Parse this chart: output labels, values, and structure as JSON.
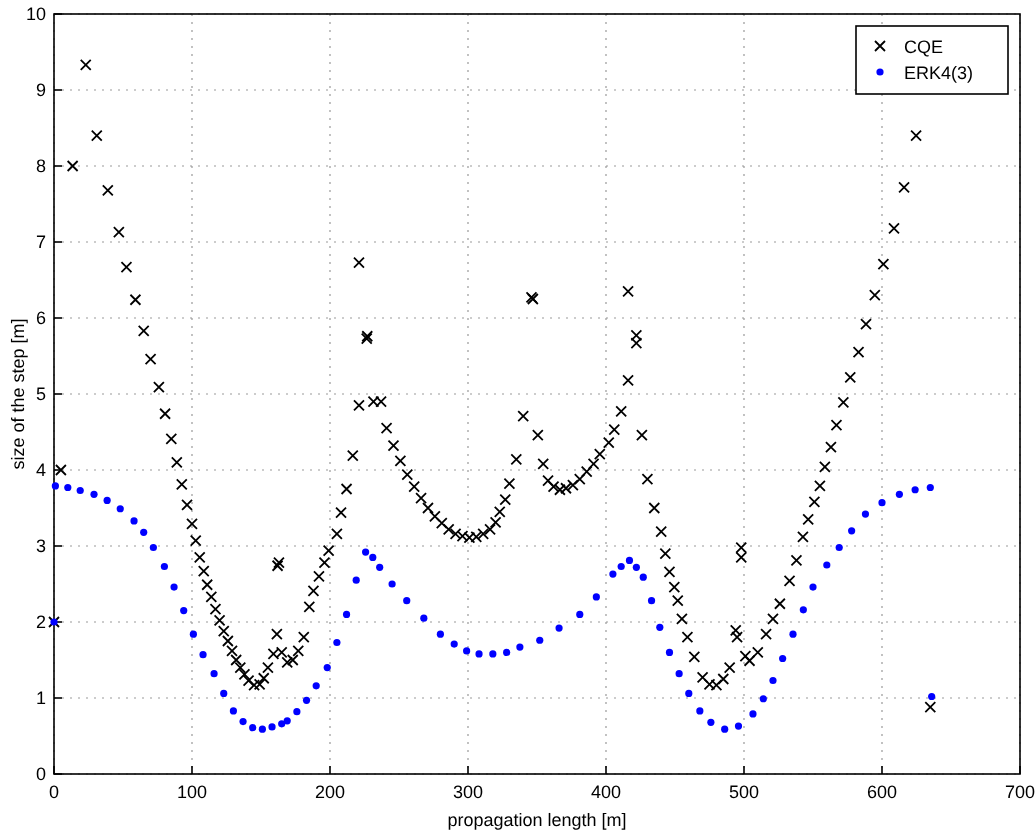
{
  "chart_data": {
    "type": "scatter",
    "xlabel": "propagation length [m]",
    "ylabel": "size of the step [m]",
    "xlim": [
      0,
      700
    ],
    "ylim": [
      0,
      10
    ],
    "xticks": [
      0,
      100,
      200,
      300,
      400,
      500,
      600,
      700
    ],
    "yticks": [
      0,
      1,
      2,
      3,
      4,
      5,
      6,
      7,
      8,
      9,
      10
    ],
    "grid": true,
    "legend": "top right",
    "series": [
      {
        "name": "CQE",
        "color": "#000000",
        "marker": "cross",
        "x": [
          0,
          5,
          13.5,
          23,
          31,
          39,
          47,
          52.5,
          59,
          65,
          70,
          76,
          80.5,
          85,
          89,
          92.6,
          96.4,
          100,
          102.7,
          105.6,
          108.5,
          111,
          114,
          117,
          120,
          123,
          126,
          129,
          132,
          135,
          138,
          141,
          145,
          149,
          152,
          155,
          159,
          161.5,
          162,
          163,
          165,
          169,
          173,
          177,
          181,
          185,
          188,
          192,
          196,
          199,
          205,
          208,
          212,
          216.5,
          221,
          221,
          226.6,
          227,
          231.5,
          237,
          241,
          246,
          251,
          256,
          261,
          266,
          271,
          276,
          281,
          286,
          291,
          296,
          301,
          306,
          311,
          316,
          320,
          323,
          327,
          330,
          335,
          340,
          346,
          347,
          350.6,
          354.5,
          358,
          362,
          366.6,
          371,
          376,
          381,
          386,
          391,
          395.5,
          402,
          406,
          411,
          416,
          416,
          422,
          422,
          426,
          430,
          435,
          440,
          443,
          446,
          449.5,
          452,
          455,
          459,
          464,
          470,
          475,
          480,
          485,
          489.6,
          494,
          495,
          498,
          498,
          501,
          504,
          510,
          516,
          521,
          526,
          533,
          538,
          542.7,
          546.5,
          551,
          555,
          558.6,
          563,
          567,
          572,
          577,
          583,
          588.4,
          594.8,
          601,
          608.7,
          616,
          624.7,
          635
        ],
        "values": [
          2,
          4,
          8.0,
          9.33,
          8.4,
          7.68,
          7.13,
          6.67,
          6.24,
          5.83,
          5.46,
          5.09,
          4.74,
          4.41,
          4.1,
          3.81,
          3.54,
          3.29,
          3.07,
          2.85,
          2.67,
          2.49,
          2.33,
          2.17,
          2.02,
          1.88,
          1.75,
          1.62,
          1.5,
          1.4,
          1.31,
          1.23,
          1.17,
          1.18,
          1.26,
          1.4,
          1.58,
          1.84,
          2.74,
          2.78,
          1.6,
          1.47,
          1.5,
          1.62,
          1.8,
          2.2,
          2.41,
          2.6,
          2.78,
          2.94,
          3.16,
          3.44,
          3.75,
          4.19,
          4.85,
          6.73,
          5.73,
          5.76,
          4.9,
          4.9,
          4.55,
          4.32,
          4.12,
          3.94,
          3.78,
          3.63,
          3.5,
          3.39,
          3.3,
          3.22,
          3.16,
          3.13,
          3.11,
          3.12,
          3.16,
          3.22,
          3.31,
          3.45,
          3.61,
          3.82,
          4.14,
          4.71,
          6.27,
          6.25,
          4.46,
          4.08,
          3.86,
          3.78,
          3.74,
          3.76,
          3.8,
          3.88,
          3.98,
          4.08,
          4.21,
          4.36,
          4.53,
          4.77,
          5.18,
          6.35,
          5.77,
          5.67,
          4.46,
          3.88,
          3.5,
          3.19,
          2.9,
          2.66,
          2.46,
          2.28,
          2.04,
          1.8,
          1.54,
          1.27,
          1.18,
          1.17,
          1.25,
          1.4,
          1.89,
          1.8,
          2.98,
          2.85,
          1.55,
          1.49,
          1.6,
          1.84,
          2.04,
          2.24,
          2.54,
          2.81,
          3.12,
          3.35,
          3.58,
          3.79,
          4.04,
          4.3,
          4.59,
          4.89,
          5.22,
          5.55,
          5.92,
          6.3,
          6.71,
          7.18,
          7.72,
          8.4,
          0.88
        ]
      },
      {
        "name": "ERK4(3)",
        "color": "#0000ff",
        "marker": "circle",
        "x": [
          0,
          1,
          10,
          19,
          29,
          38.5,
          48,
          58,
          65,
          72,
          80,
          87,
          94,
          101,
          108,
          116,
          123,
          130,
          137,
          144,
          151,
          158,
          165,
          169,
          176,
          183,
          190,
          198,
          205,
          212,
          219,
          225.8,
          231,
          236,
          245,
          255.6,
          268,
          280,
          290,
          299,
          308,
          318,
          328,
          337.6,
          352,
          366,
          381,
          393,
          405,
          411,
          417,
          422,
          427,
          433,
          439,
          446,
          453,
          460,
          468,
          476,
          486,
          496,
          506.5,
          514,
          521,
          528,
          535.5,
          543,
          550,
          560,
          569,
          578,
          588,
          600,
          612.6,
          624,
          635,
          636
        ],
        "values": [
          2,
          3.79,
          3.77,
          3.73,
          3.68,
          3.6,
          3.49,
          3.33,
          3.18,
          2.98,
          2.73,
          2.46,
          2.15,
          1.84,
          1.57,
          1.32,
          1.06,
          0.83,
          0.69,
          0.61,
          0.59,
          0.62,
          0.66,
          0.7,
          0.82,
          0.97,
          1.16,
          1.4,
          1.73,
          2.1,
          2.55,
          2.92,
          2.85,
          2.72,
          2.5,
          2.28,
          2.05,
          1.84,
          1.71,
          1.62,
          1.58,
          1.58,
          1.6,
          1.67,
          1.76,
          1.92,
          2.1,
          2.33,
          2.63,
          2.73,
          2.81,
          2.72,
          2.59,
          2.28,
          1.93,
          1.6,
          1.32,
          1.06,
          0.83,
          0.68,
          0.59,
          0.63,
          0.79,
          0.99,
          1.23,
          1.52,
          1.84,
          2.16,
          2.46,
          2.75,
          2.98,
          3.2,
          3.42,
          3.57,
          3.68,
          3.74,
          3.77,
          1.02
        ]
      }
    ]
  }
}
